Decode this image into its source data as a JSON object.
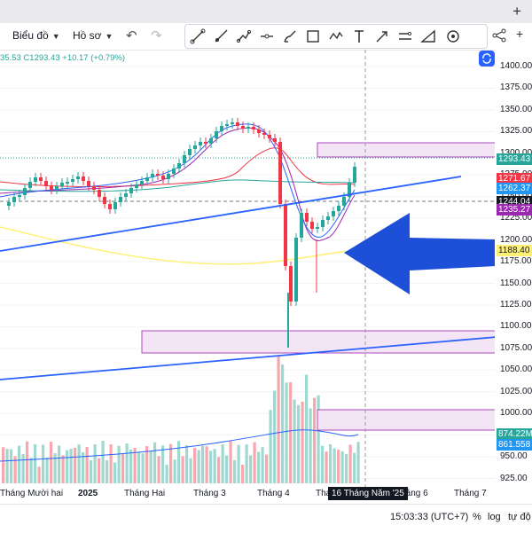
{
  "toolbar": {
    "chart_type_label": "Biểu đồ",
    "profile_label": "Hồ sơ",
    "plus_symbol": "+"
  },
  "drawing_tools": [
    "trend-line-icon",
    "ray-icon",
    "path-icon",
    "horizontal-line-icon",
    "brush-icon",
    "rectangle-icon",
    "pattern-icon",
    "text-icon",
    "arrow-icon",
    "parallel-channel-icon",
    "measure-icon",
    "target-icon"
  ],
  "ohlc": {
    "open_value": "35.53",
    "close_value": "C1293.43",
    "change_value": "+10.17 (+0.79%)"
  },
  "price_axis": {
    "ticks": [
      "1400.00",
      "1375.00",
      "1350.00",
      "1325.00",
      "1300.00",
      "1275.00",
      "1250.00",
      "1225.00",
      "1200.00",
      "1175.00",
      "1150.00",
      "1125.00",
      "1100.00",
      "1075.00",
      "1050.00",
      "1025.00",
      "1000.00",
      "975.00",
      "950.00",
      "925.00"
    ],
    "tags": [
      {
        "text": "1293.43",
        "bg": "#26a69a",
        "color": "#ffffff"
      },
      {
        "text": "1271.67",
        "bg": "#f23645",
        "color": "#ffffff"
      },
      {
        "text": "1262.37",
        "bg": "#2196f3",
        "color": "#ffffff"
      },
      {
        "text": "1244.04",
        "bg": "#131722",
        "color": "#ffffff"
      },
      {
        "text": "1235.27",
        "bg": "#9c27b0",
        "color": "#ffffff"
      },
      {
        "text": "1188.40",
        "bg": "#fff176",
        "color": "#131722"
      },
      {
        "text": "874.22M",
        "bg": "#26a69a",
        "color": "#ffffff"
      },
      {
        "text": "861.558",
        "bg": "#2196f3",
        "color": "#ffffff"
      }
    ]
  },
  "time_axis": {
    "labels": [
      "Tháng Mười hai",
      "2025",
      "Tháng Hai",
      "Tháng 3",
      "Tháng 4",
      "Thá",
      "Tháng 6",
      "Tháng 7"
    ],
    "crosshair_label": "16 Tháng Năm '25"
  },
  "footer": {
    "time": "15:03:33 (UTC+7)",
    "percent": "%",
    "log": "log",
    "auto": "tự độ"
  },
  "colors": {
    "up": "#26a69a",
    "down": "#f23645",
    "trendline": "#2962ff",
    "zone_fill": "#f3e5f5",
    "zone_border": "#ab47bc",
    "arrow": "#1e4fd8"
  }
}
